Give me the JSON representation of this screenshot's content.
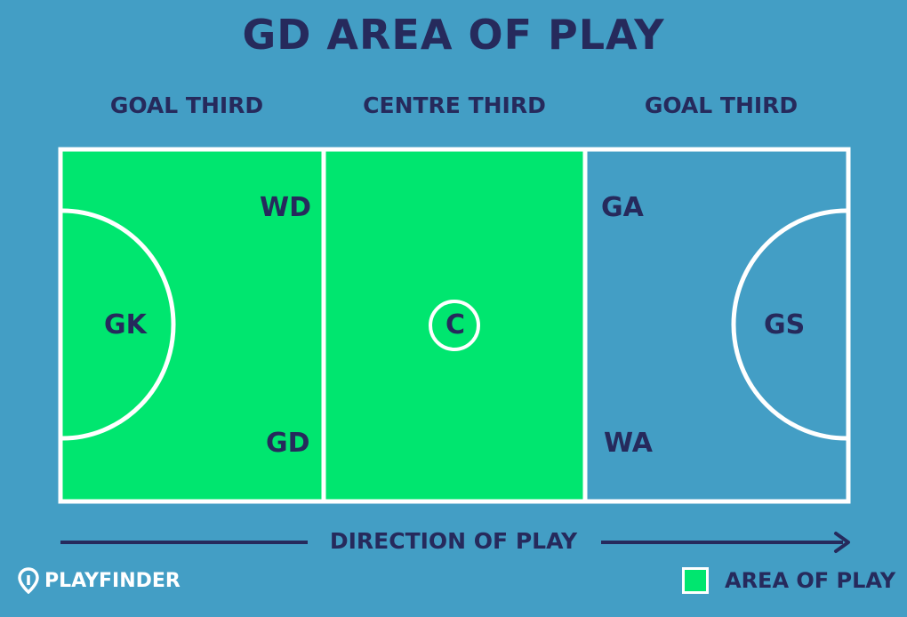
{
  "title": "GD AREA OF PLAY",
  "thirds": {
    "left": "GOAL THIRD",
    "centre": "CENTRE THIRD",
    "right": "GOAL THIRD"
  },
  "positions": {
    "wd": "WD",
    "gk": "GK",
    "gd": "GD",
    "c": "C",
    "ga": "GA",
    "gs": "GS",
    "wa": "WA"
  },
  "direction": "DIRECTION OF PLAY",
  "brand": "PLAYFINDER",
  "legend": {
    "label": "AREA OF PLAY"
  },
  "colors": {
    "background": "#439ec5",
    "area_of_play": "#00e66f",
    "lines": "#ffffff",
    "text": "#262a5c"
  }
}
